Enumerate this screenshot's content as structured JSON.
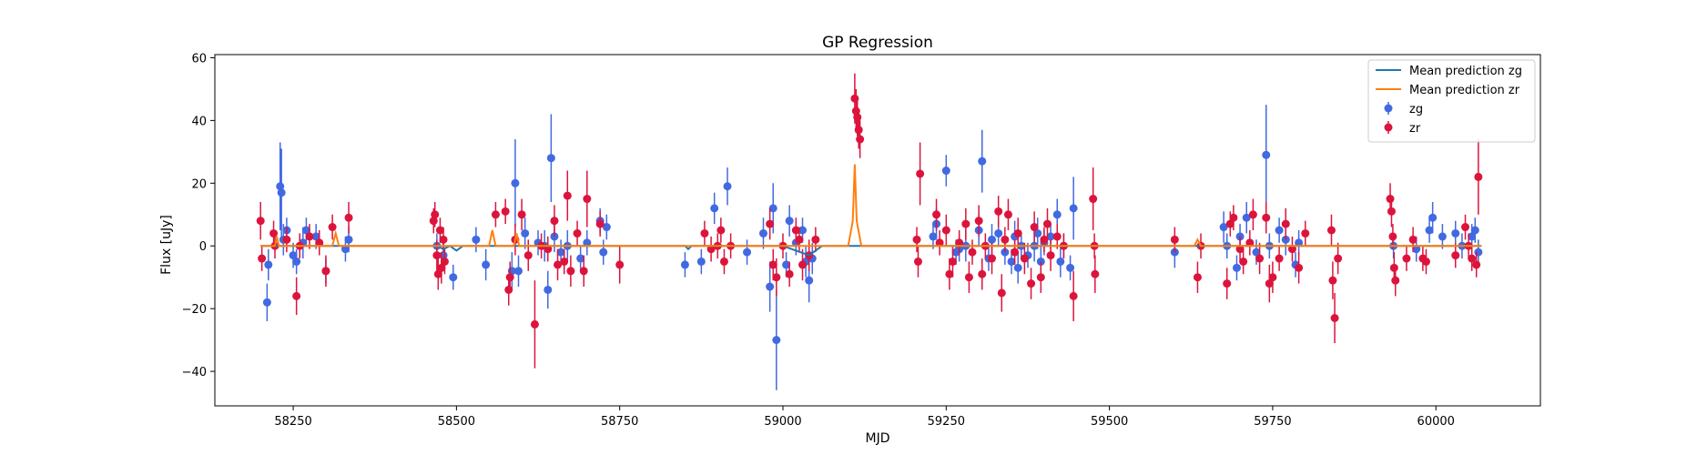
{
  "chart_data": {
    "type": "scatter",
    "title": "GP Regression",
    "xlabel": "MJD",
    "ylabel": "Flux [uJy]",
    "xlim": [
      58130,
      60160
    ],
    "ylim": [
      -51,
      61
    ],
    "xticks": [
      58250,
      58500,
      58750,
      59000,
      59250,
      59500,
      59750,
      60000
    ],
    "yticks": [
      -40,
      -20,
      0,
      20,
      40,
      60
    ],
    "legend_position": "top-right",
    "grid": false,
    "series": [
      {
        "name": "Mean prediction zg",
        "kind": "line",
        "color": "#1f77b4",
        "x": [
          58200,
          58300,
          58470,
          58480,
          58490,
          58500,
          58510,
          58850,
          58855,
          58860,
          59000,
          59040,
          59060,
          59600,
          60070
        ],
        "y": [
          0,
          0,
          0,
          -1,
          0,
          -1.5,
          0,
          0,
          -1,
          0,
          0,
          -3,
          0,
          0,
          0
        ]
      },
      {
        "name": "Mean prediction zr",
        "kind": "line",
        "color": "#ff7f0e",
        "x": [
          58200,
          58222,
          58225,
          58228,
          58310,
          58315,
          58320,
          58550,
          58555,
          58560,
          58588,
          58592,
          58596,
          59100,
          59107,
          59110,
          59113,
          59120,
          59630,
          59635,
          59640,
          60070
        ],
        "y": [
          0,
          0,
          3,
          0,
          0,
          4,
          0,
          0,
          5,
          0,
          0,
          4,
          0,
          0,
          8,
          26,
          8,
          0,
          0,
          2,
          0,
          0
        ]
      },
      {
        "name": "zg",
        "kind": "errorbar",
        "color": "#4169e1",
        "points": [
          [
            58210,
            -18,
            6
          ],
          [
            58212,
            -6,
            5
          ],
          [
            58230,
            19,
            14
          ],
          [
            58232,
            17,
            14
          ],
          [
            58235,
            2,
            5
          ],
          [
            58240,
            5,
            4
          ],
          [
            58250,
            -3,
            4
          ],
          [
            58255,
            -5,
            4
          ],
          [
            58265,
            1,
            5
          ],
          [
            58270,
            5,
            4
          ],
          [
            58285,
            3,
            4
          ],
          [
            58300,
            -8,
            4
          ],
          [
            58330,
            -1,
            4
          ],
          [
            58335,
            2,
            4
          ],
          [
            58470,
            0,
            4
          ],
          [
            58480,
            -3,
            4
          ],
          [
            58495,
            -10,
            4
          ],
          [
            58530,
            2,
            4
          ],
          [
            58545,
            -6,
            5
          ],
          [
            58585,
            -8,
            6
          ],
          [
            58590,
            20,
            14
          ],
          [
            58595,
            -8,
            5
          ],
          [
            58605,
            4,
            5
          ],
          [
            58625,
            1,
            4
          ],
          [
            58635,
            0,
            5
          ],
          [
            58640,
            -14,
            6
          ],
          [
            58645,
            28,
            14
          ],
          [
            58650,
            3,
            5
          ],
          [
            58660,
            -2,
            4
          ],
          [
            58670,
            0,
            5
          ],
          [
            58690,
            -4,
            4
          ],
          [
            58700,
            1,
            4
          ],
          [
            58720,
            8,
            4
          ],
          [
            58725,
            -2,
            4
          ],
          [
            58730,
            6,
            4
          ],
          [
            58850,
            -6,
            4
          ],
          [
            58875,
            -5,
            4
          ],
          [
            58895,
            12,
            5
          ],
          [
            58915,
            19,
            6
          ],
          [
            58945,
            -2,
            4
          ],
          [
            58970,
            4,
            5
          ],
          [
            58980,
            -13,
            8
          ],
          [
            58985,
            12,
            8
          ],
          [
            58990,
            -30,
            16
          ],
          [
            59005,
            -6,
            4
          ],
          [
            59010,
            8,
            5
          ],
          [
            59020,
            1,
            4
          ],
          [
            59030,
            5,
            4
          ],
          [
            59035,
            -5,
            5
          ],
          [
            59040,
            -11,
            7
          ],
          [
            59045,
            -4,
            5
          ],
          [
            59230,
            3,
            4
          ],
          [
            59235,
            7,
            5
          ],
          [
            59250,
            24,
            5
          ],
          [
            59265,
            -2,
            4
          ],
          [
            59270,
            -1,
            4
          ],
          [
            59280,
            0,
            5
          ],
          [
            59300,
            5,
            5
          ],
          [
            59305,
            27,
            10
          ],
          [
            59315,
            -4,
            4
          ],
          [
            59320,
            2,
            5
          ],
          [
            59330,
            4,
            4
          ],
          [
            59340,
            -2,
            4
          ],
          [
            59350,
            -5,
            4
          ],
          [
            59355,
            3,
            5
          ],
          [
            59360,
            -7,
            5
          ],
          [
            59365,
            0,
            4
          ],
          [
            59375,
            -3,
            4
          ],
          [
            59385,
            0,
            5
          ],
          [
            59390,
            4,
            5
          ],
          [
            59395,
            -5,
            5
          ],
          [
            59400,
            1,
            4
          ],
          [
            59410,
            3,
            4
          ],
          [
            59420,
            10,
            5
          ],
          [
            59425,
            -5,
            5
          ],
          [
            59430,
            0,
            4
          ],
          [
            59440,
            -7,
            4
          ],
          [
            59445,
            12,
            10
          ],
          [
            59600,
            -2,
            5
          ],
          [
            59675,
            6,
            5
          ],
          [
            59680,
            0,
            4
          ],
          [
            59695,
            -7,
            4
          ],
          [
            59700,
            3,
            4
          ],
          [
            59710,
            9,
            5
          ],
          [
            59725,
            -2,
            4
          ],
          [
            59740,
            29,
            16
          ],
          [
            59745,
            0,
            4
          ],
          [
            59760,
            5,
            4
          ],
          [
            59770,
            2,
            5
          ],
          [
            59785,
            -6,
            4
          ],
          [
            59790,
            1,
            4
          ],
          [
            59935,
            0,
            4
          ],
          [
            59970,
            -1,
            4
          ],
          [
            59990,
            5,
            4
          ],
          [
            59995,
            9,
            5
          ],
          [
            60010,
            3,
            4
          ],
          [
            60030,
            4,
            4
          ],
          [
            60040,
            0,
            4
          ],
          [
            60055,
            3,
            4
          ],
          [
            60060,
            5,
            4
          ],
          [
            60065,
            -2,
            4
          ]
        ]
      },
      {
        "name": "zr",
        "kind": "errorbar",
        "color": "#dc143c",
        "points": [
          [
            58200,
            8,
            6
          ],
          [
            58202,
            -4,
            4
          ],
          [
            58220,
            4,
            4
          ],
          [
            58222,
            0,
            4
          ],
          [
            58240,
            2,
            4
          ],
          [
            58255,
            -16,
            6
          ],
          [
            58260,
            0,
            4
          ],
          [
            58275,
            3,
            4
          ],
          [
            58290,
            1,
            4
          ],
          [
            58300,
            -8,
            5
          ],
          [
            58310,
            6,
            4
          ],
          [
            58335,
            9,
            5
          ],
          [
            58465,
            8,
            4
          ],
          [
            58467,
            10,
            4
          ],
          [
            58470,
            -3,
            5
          ],
          [
            58472,
            -9,
            5
          ],
          [
            58475,
            5,
            4
          ],
          [
            58477,
            -7,
            5
          ],
          [
            58480,
            2,
            4
          ],
          [
            58482,
            -5,
            4
          ],
          [
            58560,
            10,
            4
          ],
          [
            58575,
            11,
            4
          ],
          [
            58580,
            -14,
            5
          ],
          [
            58582,
            -10,
            5
          ],
          [
            58590,
            2,
            5
          ],
          [
            58600,
            10,
            5
          ],
          [
            58610,
            -3,
            5
          ],
          [
            58620,
            -25,
            14
          ],
          [
            58630,
            0,
            4
          ],
          [
            58640,
            -1,
            4
          ],
          [
            58650,
            8,
            5
          ],
          [
            58655,
            -6,
            5
          ],
          [
            58665,
            -5,
            4
          ],
          [
            58670,
            16,
            8
          ],
          [
            58675,
            -8,
            5
          ],
          [
            58685,
            4,
            4
          ],
          [
            58695,
            -8,
            5
          ],
          [
            58700,
            15,
            9
          ],
          [
            58720,
            7,
            4
          ],
          [
            58750,
            -6,
            6
          ],
          [
            58880,
            4,
            4
          ],
          [
            58890,
            -1,
            4
          ],
          [
            58900,
            0,
            4
          ],
          [
            58905,
            5,
            4
          ],
          [
            58910,
            -5,
            4
          ],
          [
            58920,
            0,
            4
          ],
          [
            58980,
            7,
            5
          ],
          [
            58985,
            -6,
            5
          ],
          [
            58990,
            -10,
            6
          ],
          [
            59000,
            0,
            4
          ],
          [
            59010,
            -9,
            4
          ],
          [
            59020,
            5,
            4
          ],
          [
            59025,
            2,
            4
          ],
          [
            59030,
            -6,
            5
          ],
          [
            59040,
            -3,
            5
          ],
          [
            59050,
            2,
            4
          ],
          [
            59110,
            47,
            8
          ],
          [
            59112,
            43,
            7
          ],
          [
            59114,
            41,
            6
          ],
          [
            59116,
            37,
            6
          ],
          [
            59118,
            34,
            6
          ],
          [
            59205,
            2,
            4
          ],
          [
            59207,
            -5,
            5
          ],
          [
            59210,
            23,
            10
          ],
          [
            59235,
            10,
            5
          ],
          [
            59240,
            1,
            4
          ],
          [
            59250,
            5,
            5
          ],
          [
            59255,
            -9,
            5
          ],
          [
            59260,
            -5,
            5
          ],
          [
            59270,
            1,
            4
          ],
          [
            59280,
            7,
            5
          ],
          [
            59285,
            -10,
            5
          ],
          [
            59290,
            -2,
            4
          ],
          [
            59300,
            8,
            5
          ],
          [
            59305,
            -9,
            5
          ],
          [
            59310,
            0,
            4
          ],
          [
            59320,
            -4,
            5
          ],
          [
            59330,
            11,
            5
          ],
          [
            59335,
            -15,
            6
          ],
          [
            59340,
            2,
            4
          ],
          [
            59345,
            10,
            5
          ],
          [
            59355,
            -2,
            4
          ],
          [
            59360,
            4,
            5
          ],
          [
            59370,
            -4,
            5
          ],
          [
            59380,
            -12,
            5
          ],
          [
            59385,
            6,
            5
          ],
          [
            59395,
            -10,
            5
          ],
          [
            59400,
            2,
            4
          ],
          [
            59405,
            7,
            5
          ],
          [
            59410,
            -3,
            5
          ],
          [
            59420,
            3,
            4
          ],
          [
            59430,
            0,
            4
          ],
          [
            59445,
            -16,
            8
          ],
          [
            59475,
            15,
            10
          ],
          [
            59477,
            0,
            4
          ],
          [
            59478,
            -9,
            6
          ],
          [
            59600,
            2,
            4
          ],
          [
            59635,
            -10,
            5
          ],
          [
            59640,
            0,
            4
          ],
          [
            59680,
            -12,
            5
          ],
          [
            59685,
            7,
            4
          ],
          [
            59690,
            9,
            4
          ],
          [
            59700,
            -1,
            4
          ],
          [
            59705,
            -5,
            4
          ],
          [
            59715,
            1,
            4
          ],
          [
            59720,
            10,
            5
          ],
          [
            59730,
            -4,
            5
          ],
          [
            59740,
            9,
            5
          ],
          [
            59745,
            -12,
            6
          ],
          [
            59750,
            -10,
            5
          ],
          [
            59760,
            -4,
            4
          ],
          [
            59770,
            7,
            5
          ],
          [
            59780,
            -1,
            4
          ],
          [
            59790,
            -7,
            5
          ],
          [
            59800,
            4,
            4
          ],
          [
            59840,
            5,
            5
          ],
          [
            59842,
            -11,
            6
          ],
          [
            59845,
            -23,
            8
          ],
          [
            59850,
            -4,
            5
          ],
          [
            59930,
            15,
            5
          ],
          [
            59932,
            11,
            5
          ],
          [
            59934,
            3,
            4
          ],
          [
            59936,
            -7,
            5
          ],
          [
            59938,
            -11,
            5
          ],
          [
            59955,
            -4,
            4
          ],
          [
            59965,
            2,
            4
          ],
          [
            59980,
            -4,
            4
          ],
          [
            59985,
            -5,
            4
          ],
          [
            60030,
            -3,
            4
          ],
          [
            60045,
            6,
            4
          ],
          [
            60050,
            0,
            4
          ],
          [
            60055,
            -4,
            4
          ],
          [
            60062,
            -6,
            4
          ],
          [
            60065,
            22,
            12
          ]
        ]
      }
    ]
  }
}
